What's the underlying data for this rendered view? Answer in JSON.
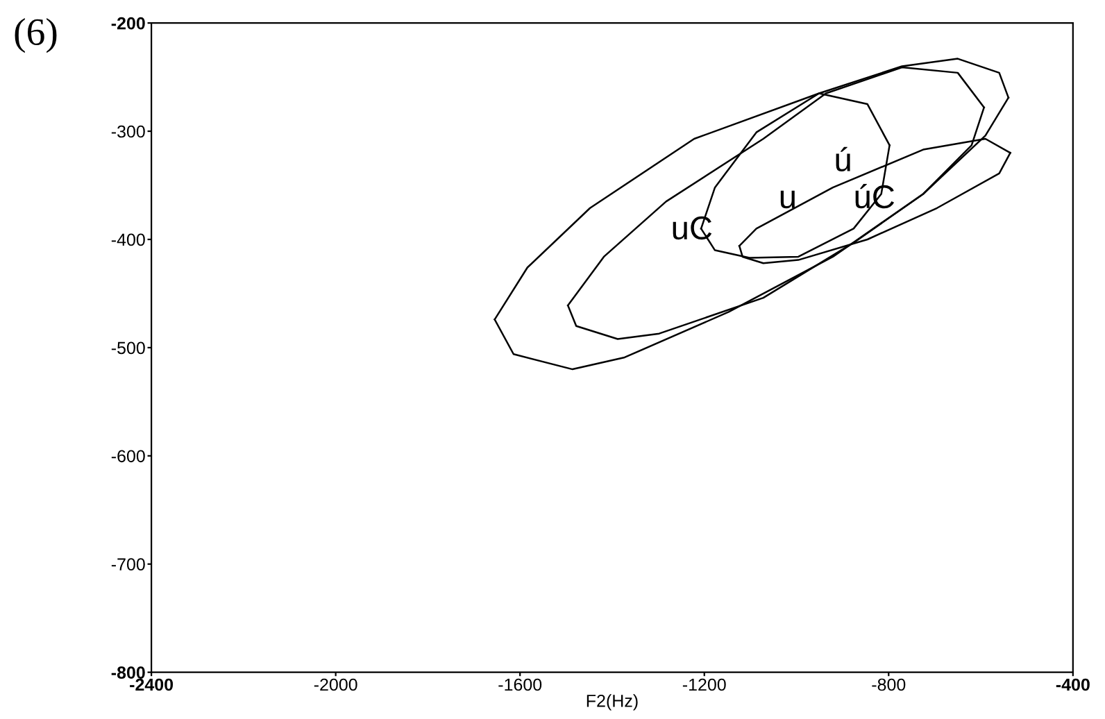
{
  "chart_data": {
    "type": "line",
    "xlabel": "F2(Hz)",
    "xlim": [
      -2400,
      -400
    ],
    "xticks": [
      -2400,
      -2000,
      -1600,
      -1200,
      -800,
      -400
    ],
    "ylim": [
      -800,
      -200
    ],
    "yticks": [
      -800,
      -700,
      -600,
      -500,
      -400,
      -300,
      -200
    ],
    "grid": false,
    "marker": "none",
    "line_style": "solid",
    "series": [
      {
        "color": "#000000",
        "x": [
          -1655,
          -1584,
          -1448,
          -1222,
          -951,
          -771,
          -650,
          -560,
          -540
        ],
        "values": [
          -474,
          -426,
          -371,
          -307,
          -265,
          -240,
          -233,
          -246,
          -269
        ]
      },
      {
        "color": "#000000",
        "x": [
          -1655,
          -1614,
          -1486,
          -1373,
          -1147,
          -921,
          -725,
          -590,
          -540
        ],
        "values": [
          -474,
          -506,
          -520,
          -509,
          -467,
          -416,
          -358,
          -304,
          -269
        ]
      },
      {
        "color": "#000000",
        "x": [
          -1496,
          -1418,
          -1283,
          -1072,
          -936,
          -771,
          -650,
          -593
        ],
        "values": [
          -461,
          -416,
          -365,
          -307,
          -265,
          -241,
          -246,
          -278
        ]
      },
      {
        "color": "#000000",
        "x": [
          -1496,
          -1478,
          -1388,
          -1298,
          -1072,
          -876,
          -725,
          -620,
          -593
        ],
        "values": [
          -461,
          -480,
          -492,
          -487,
          -454,
          -403,
          -358,
          -313,
          -278
        ]
      },
      {
        "color": "#000000",
        "x": [
          -1207,
          -1177,
          -1087,
          -951,
          -846,
          -798
        ],
        "values": [
          -390,
          -352,
          -301,
          -265,
          -275,
          -313
        ]
      },
      {
        "color": "#000000",
        "x": [
          -1207,
          -1177,
          -1102,
          -996,
          -876,
          -816,
          -798
        ],
        "values": [
          -390,
          -410,
          -417,
          -416,
          -390,
          -358,
          -313
        ]
      },
      {
        "color": "#000000",
        "x": [
          -1124,
          -1087,
          -921,
          -725,
          -590,
          -536
        ],
        "values": [
          -406,
          -390,
          -352,
          -317,
          -307,
          -320
        ]
      },
      {
        "color": "#000000",
        "x": [
          -1124,
          -1117,
          -1072,
          -996,
          -846,
          -695,
          -560,
          -536
        ],
        "values": [
          -406,
          -416,
          -422,
          -419,
          -400,
          -371,
          -339,
          -320
        ]
      }
    ],
    "annotations": [
      "(6)",
      "uC",
      "u",
      "ú",
      "úC"
    ]
  }
}
